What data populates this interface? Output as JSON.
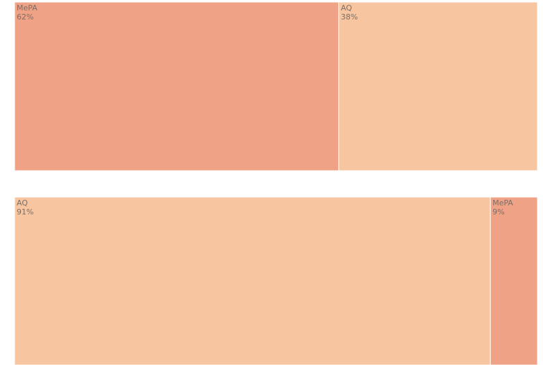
{
  "chart_data": [
    {
      "type": "treemap",
      "categories": [
        "MePA",
        "AQ"
      ],
      "values": [
        62,
        38
      ],
      "value_labels": [
        "62%",
        "38%"
      ],
      "colors": [
        "#f0a286",
        "#f7c6a0"
      ]
    },
    {
      "type": "treemap",
      "categories": [
        "AQ",
        "MePA"
      ],
      "values": [
        91,
        9
      ],
      "value_labels": [
        "91%",
        "9%"
      ],
      "colors": [
        "#f7c6a0",
        "#f0a286"
      ]
    }
  ]
}
